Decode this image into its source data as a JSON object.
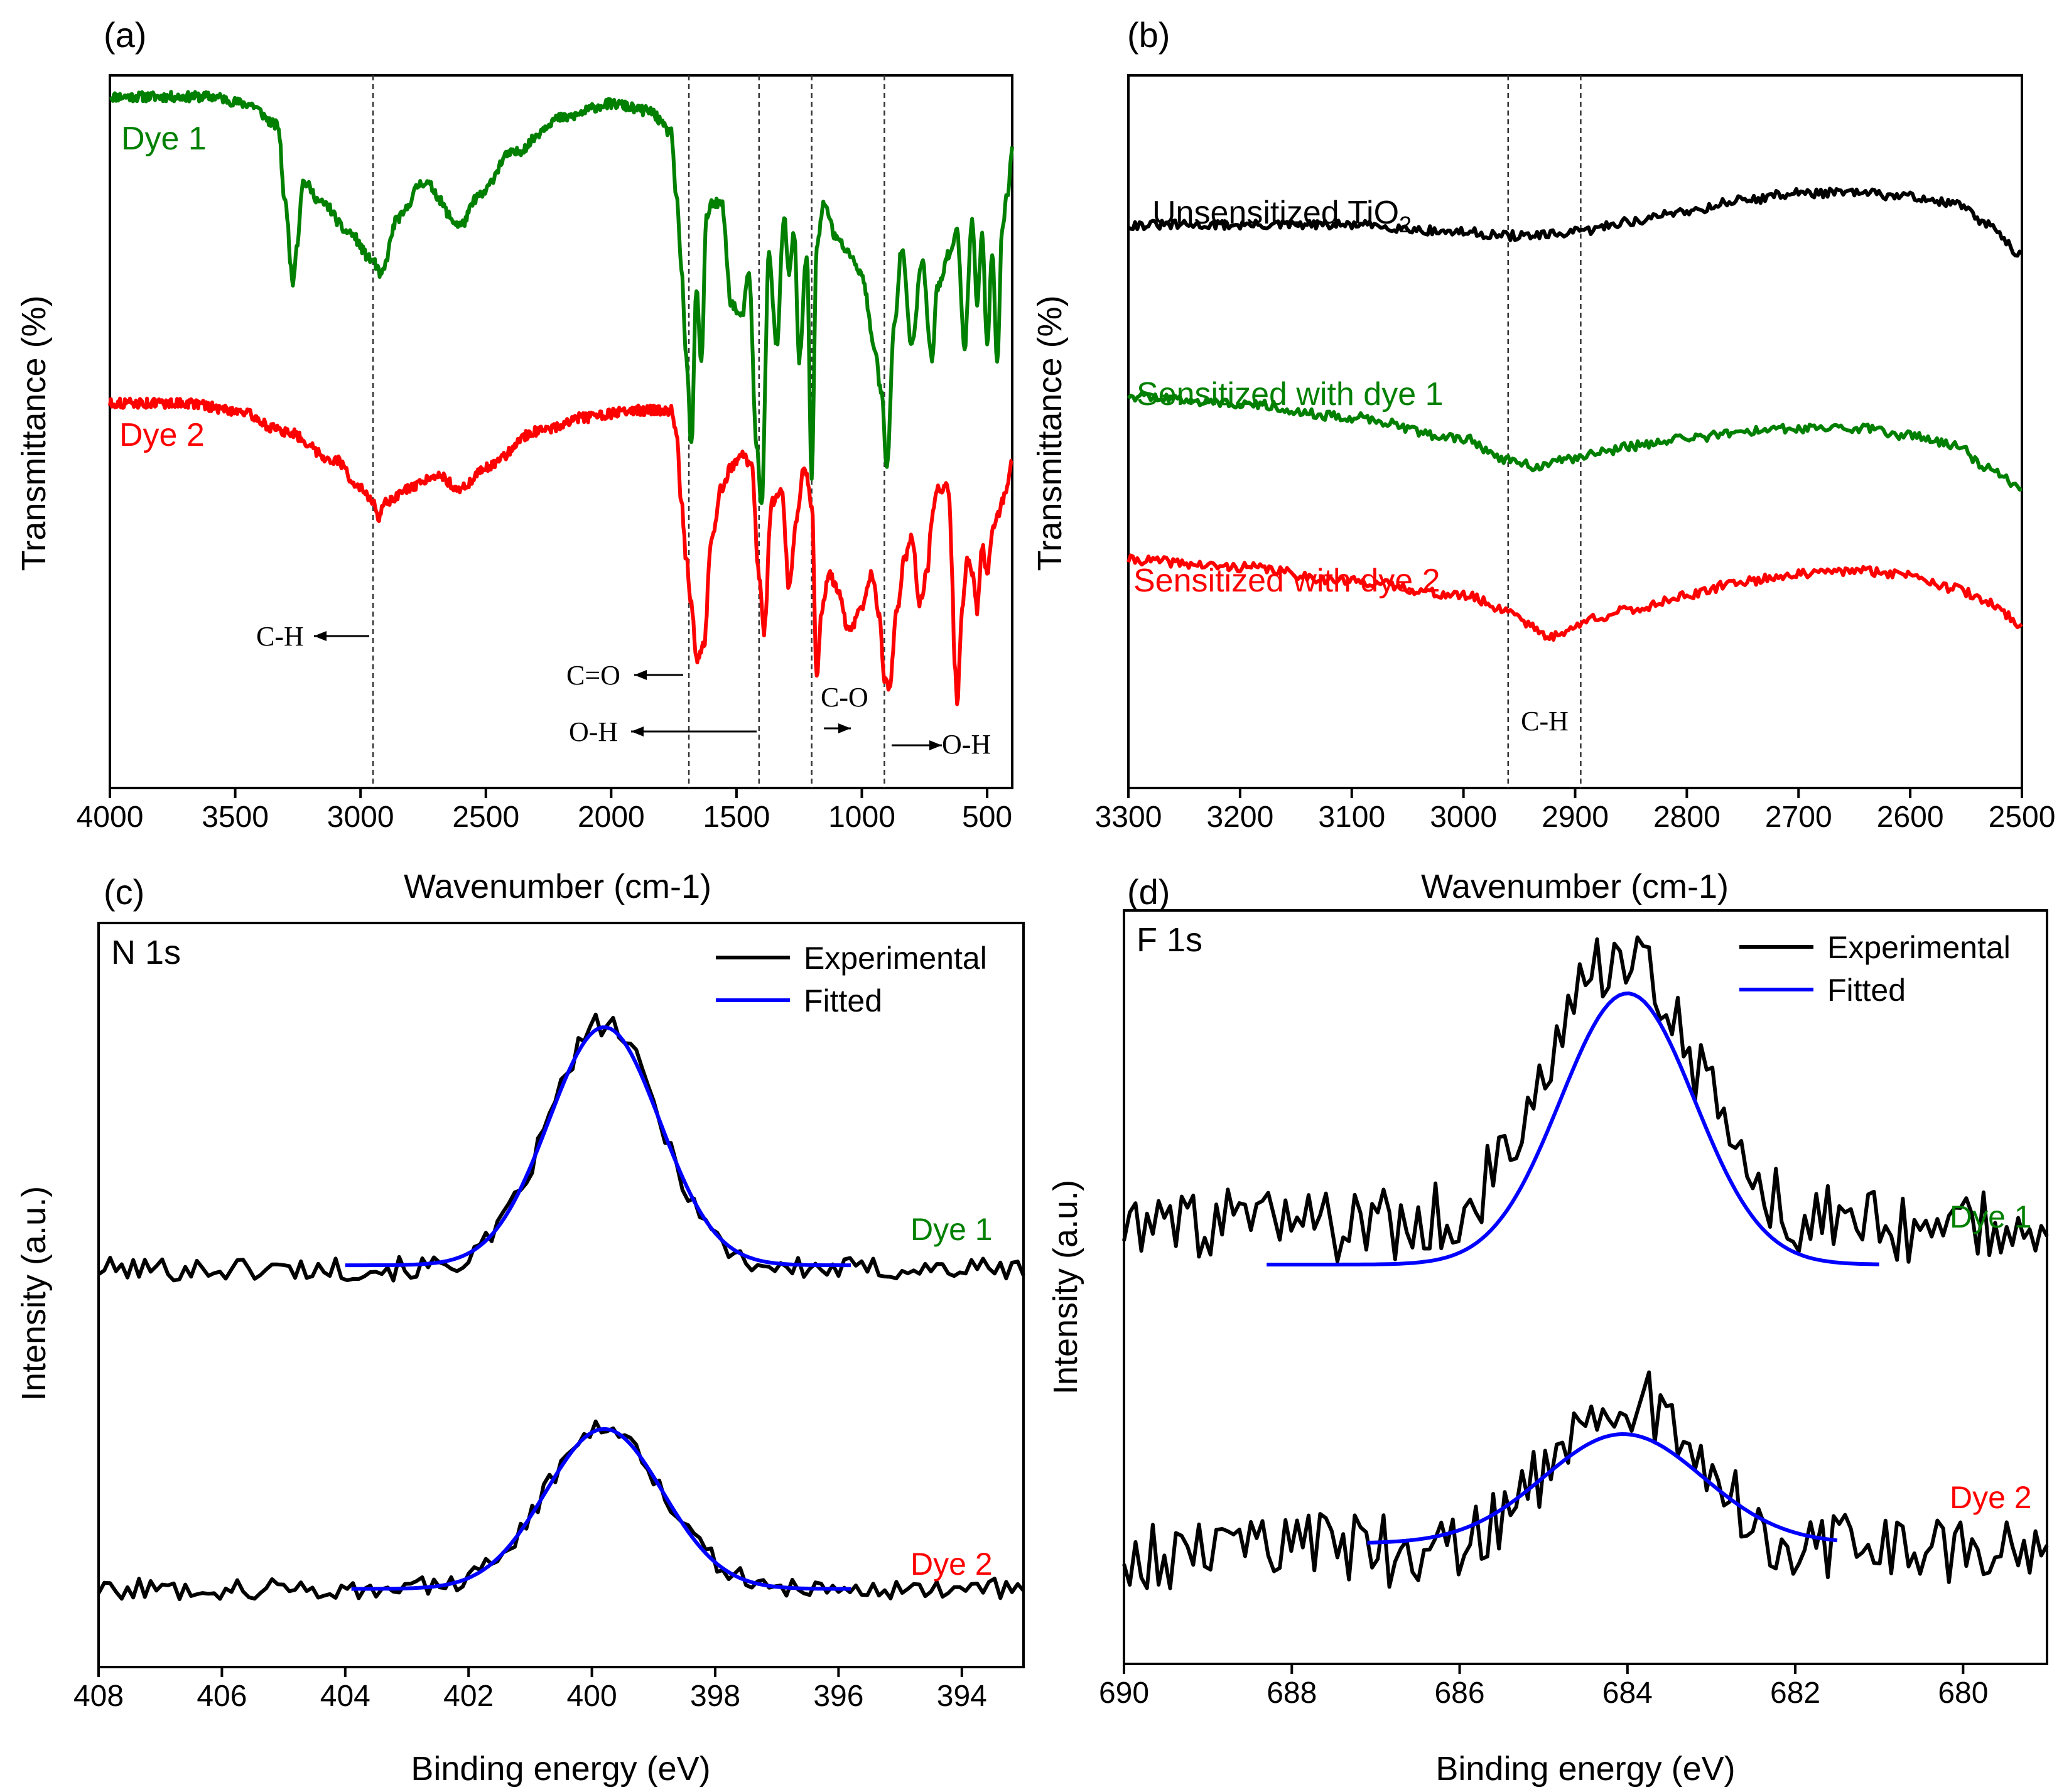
{
  "chart_data": [
    {
      "panel": "(a)",
      "type": "line",
      "xlabel": "Wavenumber (cm-1)",
      "ylabel": "Transmittance (%)",
      "xlim": [
        4000,
        400
      ],
      "ylim": [
        0,
        100
      ],
      "xticks": [
        4000,
        3500,
        3000,
        2500,
        2000,
        1500,
        1000,
        500
      ],
      "series": [
        {
          "name": "Dye 1",
          "color": "#008000",
          "x": [
            4000,
            3800,
            3600,
            3450,
            3330,
            3300,
            3270,
            3255,
            3230,
            3150,
            3050,
            2950,
            2920,
            2850,
            2750,
            2600,
            2530,
            2400,
            2200,
            2000,
            1850,
            1760,
            1740,
            1720,
            1700,
            1680,
            1660,
            1640,
            1620,
            1600,
            1560,
            1520,
            1480,
            1450,
            1420,
            1400,
            1370,
            1340,
            1310,
            1290,
            1270,
            1250,
            1220,
            1200,
            1180,
            1150,
            1100,
            1050,
            1000,
            950,
            920,
            900,
            870,
            840,
            800,
            760,
            720,
            700,
            650,
            620,
            590,
            560,
            540,
            520,
            500,
            480,
            460,
            440,
            420,
            400
          ],
          "y": [
            97,
            97,
            97,
            96,
            93,
            82,
            71,
            76,
            85,
            82,
            78,
            74,
            72,
            80,
            85,
            79,
            83,
            89,
            94,
            96,
            95,
            92,
            83,
            73,
            60,
            48,
            70,
            60,
            80,
            82,
            82,
            68,
            66,
            72,
            48,
            40,
            75,
            62,
            80,
            72,
            78,
            60,
            75,
            44,
            76,
            82,
            77,
            75,
            72,
            62,
            55,
            45,
            65,
            76,
            62,
            74,
            60,
            70,
            75,
            78,
            62,
            80,
            68,
            78,
            62,
            75,
            60,
            78,
            83,
            90
          ]
        },
        {
          "name": "Dye 2",
          "color": "#ff0000",
          "x": [
            4000,
            3700,
            3500,
            3300,
            3100,
            3000,
            2950,
            2930,
            2900,
            2800,
            2700,
            2600,
            2500,
            2300,
            2100,
            1900,
            1760,
            1740,
            1720,
            1700,
            1680,
            1660,
            1630,
            1600,
            1560,
            1520,
            1480,
            1440,
            1410,
            1390,
            1360,
            1320,
            1290,
            1260,
            1230,
            1200,
            1180,
            1160,
            1130,
            1100,
            1050,
            1000,
            960,
            930,
            910,
            890,
            860,
            830,
            800,
            770,
            740,
            720,
            700,
            680,
            660,
            650,
            640,
            630,
            620,
            600,
            580,
            560,
            540,
            520,
            500,
            480,
            460,
            440,
            420,
            400
          ],
          "y": [
            54,
            54,
            53,
            50,
            46,
            42,
            40,
            38,
            40,
            42,
            44,
            42,
            45,
            50,
            52,
            53,
            53,
            50,
            40,
            32,
            26,
            18,
            20,
            35,
            42,
            45,
            47,
            45,
            30,
            22,
            40,
            42,
            28,
            38,
            45,
            40,
            16,
            25,
            30,
            28,
            22,
            25,
            30,
            24,
            15,
            14,
            25,
            32,
            35,
            26,
            30,
            38,
            42,
            42,
            43,
            40,
            30,
            18,
            12,
            25,
            32,
            30,
            25,
            34,
            30,
            36,
            38,
            40,
            42,
            46
          ]
        }
      ],
      "annotations": [
        {
          "text": "C-H",
          "x": 2950
        },
        {
          "text": "C=O",
          "x": 1690
        },
        {
          "text": "O-H",
          "x": 1410
        },
        {
          "text": "C-O",
          "x": 1200
        },
        {
          "text": "O-H",
          "x": 910
        }
      ]
    },
    {
      "panel": "(b)",
      "type": "line",
      "xlabel": "Wavenumber (cm-1)",
      "ylabel": "Transmittance (%)",
      "xlim": [
        3300,
        2500
      ],
      "ylim": [
        0,
        100
      ],
      "xticks": [
        3300,
        3200,
        3100,
        3000,
        2900,
        2800,
        2700,
        2600,
        2500
      ],
      "series": [
        {
          "name": "Unsensitized TiO2",
          "label_main": "Unsensitized TiO",
          "label_sub": "2",
          "color": "#000000",
          "x": [
            3300,
            3200,
            3100,
            3000,
            2960,
            2930,
            2900,
            2850,
            2800,
            2750,
            2700,
            2650,
            2600,
            2560,
            2530,
            2500
          ],
          "y": [
            79,
            79,
            79,
            78,
            77.5,
            77.5,
            78,
            79.5,
            81,
            82.5,
            83.5,
            83.5,
            83,
            82,
            79,
            75
          ]
        },
        {
          "name": "Sensitized with dye 1",
          "color": "#008000",
          "x": [
            3300,
            3200,
            3100,
            3000,
            2960,
            2930,
            2910,
            2880,
            2850,
            2800,
            2750,
            2700,
            2650,
            2600,
            2560,
            2530,
            2500
          ],
          "y": [
            55,
            54,
            52,
            49,
            46,
            45,
            46,
            47,
            48,
            49,
            50,
            50.5,
            50.5,
            49.5,
            48,
            45,
            42
          ]
        },
        {
          "name": "Sensitized with dye 2",
          "color": "#ff0000",
          "x": [
            3300,
            3200,
            3100,
            3000,
            2960,
            2940,
            2925,
            2910,
            2880,
            2850,
            2800,
            2750,
            2700,
            2650,
            2600,
            2560,
            2530,
            2500
          ],
          "y": [
            32,
            31,
            29,
            27,
            25,
            23,
            21,
            22,
            24,
            25,
            27,
            29,
            30,
            30.5,
            30,
            28,
            26,
            23
          ]
        }
      ],
      "annotations": [
        {
          "text": "C-H",
          "x": 2930
        }
      ]
    },
    {
      "panel": "(c)",
      "type": "line",
      "title": "N 1s",
      "xlabel": "Binding energy (eV)",
      "ylabel": "Intensity (a.u.)",
      "xlim": [
        408,
        393
      ],
      "ylim": [
        0,
        100
      ],
      "xticks": [
        408,
        406,
        404,
        402,
        400,
        398,
        396,
        394
      ],
      "legend": [
        "Experimental",
        "Fitted"
      ],
      "legend_position": "top-right",
      "series": [
        {
          "name": "Dye 1 Experimental",
          "label": "Dye 1",
          "color": "#000000",
          "x_start": 408,
          "x_end": 393,
          "baseline": 53.5,
          "peak_center": 399.8,
          "peak_height": 33,
          "peak_sigma": 0.9,
          "noise": 1.6
        },
        {
          "name": "Dye 1 Fitted",
          "color": "#0000ff",
          "x_start": 404,
          "x_end": 395.8,
          "baseline": 54,
          "peak_center": 399.8,
          "peak_height": 32,
          "peak_sigma": 0.9
        },
        {
          "name": "Dye 2 Experimental",
          "label": "Dye 2",
          "color": "#000000",
          "x_start": 408,
          "x_end": 393,
          "baseline": 10.5,
          "peak_center": 399.8,
          "peak_height": 22,
          "peak_sigma": 0.95,
          "noise": 1.4
        },
        {
          "name": "Dye 2 Fitted",
          "color": "#0000ff",
          "x_start": 403.9,
          "x_end": 395.8,
          "baseline": 10.5,
          "peak_center": 399.8,
          "peak_height": 21.5,
          "peak_sigma": 0.95
        }
      ]
    },
    {
      "panel": "(d)",
      "type": "line",
      "title": "F 1s",
      "xlabel": "Binding energy (eV)",
      "ylabel": "Intensity (a.u.)",
      "xlim": [
        690,
        679
      ],
      "ylim": [
        0,
        100
      ],
      "xticks": [
        690,
        688,
        686,
        684,
        682,
        680
      ],
      "legend": [
        "Experimental",
        "Fitted"
      ],
      "legend_position": "top-right",
      "series": [
        {
          "name": "Dye 1 Experimental",
          "label": "Dye 1",
          "color": "#000000",
          "x_start": 690,
          "x_end": 679,
          "baseline": 58,
          "peak_center": 684.05,
          "peak_height": 36,
          "peak_sigma": 0.85,
          "noise": 5
        },
        {
          "name": "Dye 1 Fitted",
          "color": "#0000ff",
          "x_start": 688.3,
          "x_end": 681,
          "baseline": 53,
          "peak_center": 684.0,
          "peak_height": 36,
          "peak_sigma": 0.8
        },
        {
          "name": "Dye 2 Experimental",
          "label": "Dye 2",
          "color": "#000000",
          "x_start": 690,
          "x_end": 679,
          "baseline": 15,
          "peak_center": 684.05,
          "peak_height": 20,
          "peak_sigma": 0.9,
          "noise": 5
        },
        {
          "name": "Dye 2 Fitted",
          "color": "#0000ff",
          "x_start": 687.1,
          "x_end": 681.5,
          "baseline": 16,
          "peak_center": 684.05,
          "peak_height": 14.5,
          "peak_sigma": 0.95
        }
      ]
    }
  ]
}
